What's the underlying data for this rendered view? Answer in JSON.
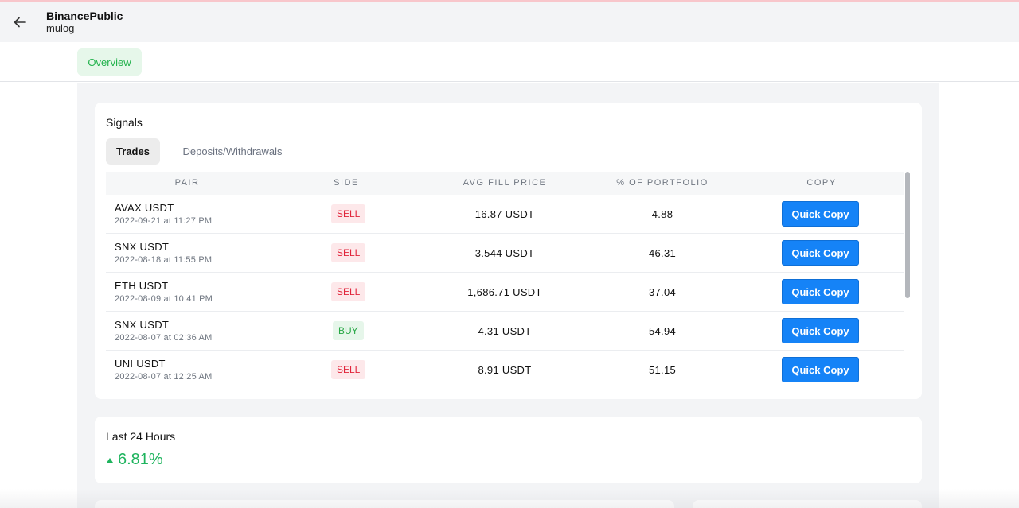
{
  "header": {
    "title": "BinancePublic",
    "subtitle": "mulog"
  },
  "tabs": {
    "overview": "Overview"
  },
  "signals": {
    "title": "Signals",
    "subtabs": {
      "trades": "Trades",
      "deposits": "Deposits/Withdrawals"
    },
    "columns": [
      "PAIR",
      "SIDE",
      "AVG FILL PRICE",
      "% OF PORTFOLIO",
      "COPY"
    ],
    "rows": [
      {
        "pair": "AVAX USDT",
        "date": "2022-09-21 at 11:27 PM",
        "side": "SELL",
        "price": "16.87 USDT",
        "pct": "4.88",
        "copy": "Quick Copy"
      },
      {
        "pair": "SNX USDT",
        "date": "2022-08-18 at 11:55 PM",
        "side": "SELL",
        "price": "3.544 USDT",
        "pct": "46.31",
        "copy": "Quick Copy"
      },
      {
        "pair": "ETH USDT",
        "date": "2022-08-09 at 10:41 PM",
        "side": "SELL",
        "price": "1,686.71 USDT",
        "pct": "37.04",
        "copy": "Quick Copy"
      },
      {
        "pair": "SNX USDT",
        "date": "2022-08-07 at 02:36 AM",
        "side": "BUY",
        "price": "4.31 USDT",
        "pct": "54.94",
        "copy": "Quick Copy"
      },
      {
        "pair": "UNI USDT",
        "date": "2022-08-07 at 12:25 AM",
        "side": "SELL",
        "price": "8.91 USDT",
        "pct": "51.15",
        "copy": "Quick Copy"
      }
    ]
  },
  "last24": {
    "title": "Last 24 Hours",
    "value": "6.81%",
    "trend": "up",
    "color": "#1fb45e"
  },
  "icons": {
    "back": "arrow-left-icon",
    "trend": "triangle-up-icon"
  },
  "colors": {
    "accent": "#1583f7",
    "sell": "#e0243a",
    "buy": "#27a745",
    "positive": "#1fb45e"
  }
}
